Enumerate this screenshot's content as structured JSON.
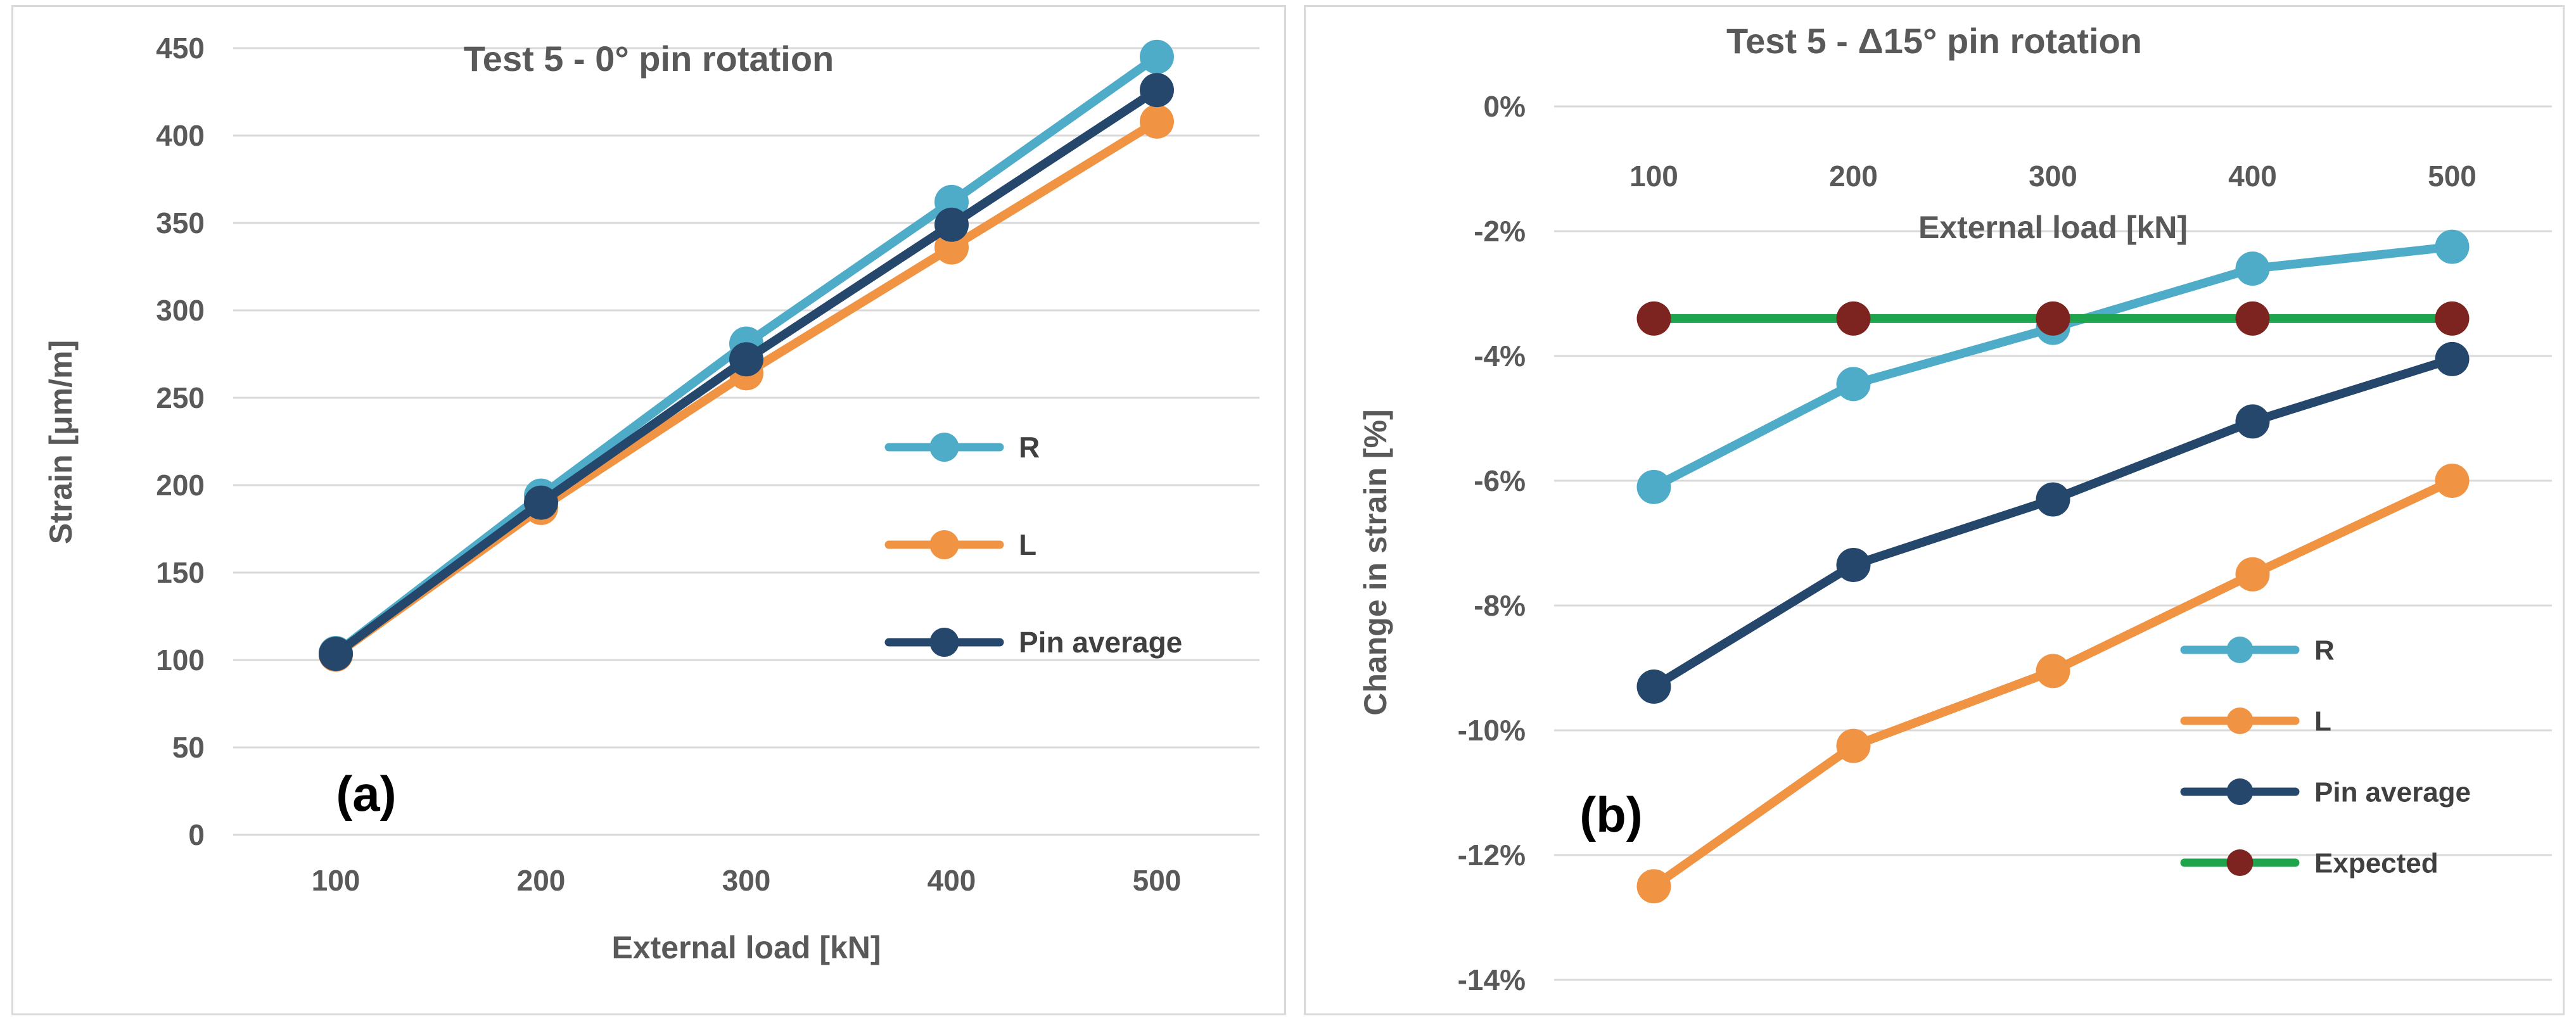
{
  "figure": {
    "background": "#FFFFFF",
    "grid_color": "#D9D9D9",
    "text_color": "#595959",
    "legend_text_color": "#404040",
    "panel_label_color": "#000000"
  },
  "chart_data": [
    {
      "type": "line",
      "panel_label": "(a)",
      "title": "Test 5 - 0° pin rotation",
      "xlabel": "External load [kN]",
      "ylabel": "Strain [μm/m]",
      "categories": [
        "100",
        "200",
        "300",
        "400",
        "500"
      ],
      "ylim": [
        0,
        450
      ],
      "ytick_labels": [
        "450",
        "400",
        "350",
        "300",
        "250",
        "200",
        "150",
        "100",
        "50",
        "0"
      ],
      "grid": "horizontal",
      "legend_position": "inside-right-middle",
      "legend": [
        "R",
        "L",
        "Pin average"
      ],
      "series": [
        {
          "name": "R",
          "color": "#4FACC8",
          "values": [
            104,
            194,
            281,
            362,
            445
          ]
        },
        {
          "name": "L",
          "color": "#F09342",
          "values": [
            103,
            187,
            264,
            336,
            408
          ]
        },
        {
          "name": "Pin average",
          "color": "#25476C",
          "values": [
            103.5,
            190,
            272,
            349,
            426
          ]
        }
      ]
    },
    {
      "type": "line",
      "panel_label": "(b)",
      "title": "Test 5 - Δ15° pin rotation",
      "xlabel": "External load [kN]",
      "ylabel": "Change in strain [%]",
      "categories": [
        "100",
        "200",
        "300",
        "400",
        "500"
      ],
      "ylim": [
        -14,
        0
      ],
      "ytick_labels": [
        "0%",
        "-2%",
        "-4%",
        "-6%",
        "-8%",
        "-10%",
        "-12%",
        "-14%"
      ],
      "grid": "horizontal",
      "legend_position": "inside-right-lower",
      "legend": [
        "R",
        "L",
        "Pin average",
        "Expected"
      ],
      "series": [
        {
          "name": "R",
          "color": "#4FACC8",
          "values": [
            -6.1,
            -4.45,
            -3.55,
            -2.6,
            -2.25
          ]
        },
        {
          "name": "L",
          "color": "#F09342",
          "values": [
            -12.5,
            -10.25,
            -9.05,
            -7.5,
            -6.0
          ]
        },
        {
          "name": "Pin average",
          "color": "#25476C",
          "values": [
            -9.3,
            -7.35,
            -6.3,
            -5.05,
            -4.05
          ]
        },
        {
          "name": "Expected",
          "color": "#1EA44C",
          "marker_color": "#7E2420",
          "values": [
            -3.4,
            -3.4,
            -3.4,
            -3.4,
            -3.4
          ]
        }
      ]
    }
  ]
}
